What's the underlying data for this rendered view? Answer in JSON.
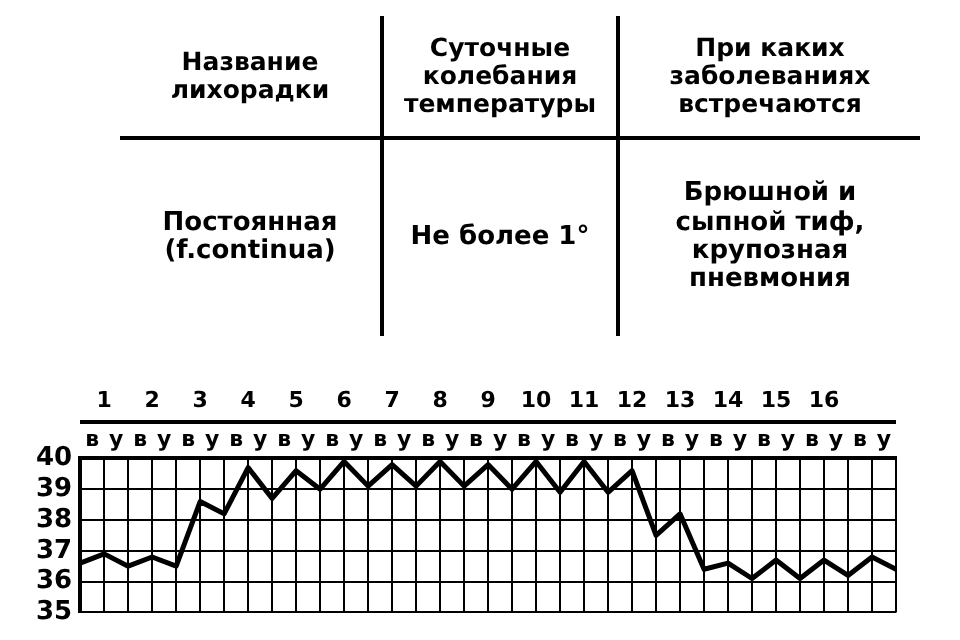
{
  "chart_data": [
    {
      "type": "other",
      "annotations": [
        "Название лихорадки",
        "Суточные колебания температуры",
        "При каких заболеваниях встречаются",
        "Постоянная (f.continua)",
        "Не более 1°",
        "Брюшной и сыпной тиф, крупозная пневмония"
      ]
    },
    {
      "type": "line",
      "annotations": [
        "в",
        "у",
        "в",
        "у",
        "в",
        "у",
        "в",
        "у",
        "в",
        "у",
        "в",
        "у",
        "в",
        "у",
        "в",
        "у",
        "в",
        "у",
        "в",
        "у",
        "в",
        "у",
        "в",
        "у",
        "в",
        "у",
        "в",
        "у",
        "в",
        "у",
        "в",
        "у",
        "в",
        "у"
      ],
      "x": [
        0.5,
        1,
        1.5,
        2,
        2.5,
        3,
        3.5,
        4,
        4.5,
        5,
        5.5,
        6,
        6.5,
        7,
        7.5,
        8,
        8.5,
        9,
        9.5,
        10,
        10.5,
        11,
        11.5,
        12,
        12.5,
        13,
        13.5,
        14,
        14.5,
        15,
        15.5,
        16,
        16.5,
        17,
        17.5
      ],
      "series": [
        {
          "color": "#000000",
          "values": [
            36.6,
            36.9,
            36.5,
            36.8,
            36.5,
            38.6,
            38.2,
            39.7,
            38.7,
            39.6,
            39.0,
            39.9,
            39.1,
            39.8,
            39.1,
            39.9,
            39.1,
            39.8,
            39.0,
            39.9,
            38.9,
            39.9,
            38.9,
            39.6,
            37.5,
            38.2,
            36.4,
            36.6,
            36.1,
            36.7,
            36.1,
            36.7,
            36.2,
            36.8,
            36.4
          ]
        }
      ],
      "xlim": [
        0.5,
        17.5
      ],
      "xticks": [
        {
          "value": 0.5,
          "label": null
        },
        1,
        {
          "value": 1,
          "label": null
        },
        {
          "value": 1.5,
          "label": null
        },
        2,
        {
          "value": 2,
          "label": null
        },
        {
          "value": 2.5,
          "label": null
        },
        3,
        {
          "value": 3,
          "label": null
        },
        {
          "value": 3.5,
          "label": null
        },
        4,
        {
          "value": 4,
          "label": null
        },
        {
          "value": 4.5,
          "label": null
        },
        5,
        {
          "value": 5,
          "label": null
        },
        {
          "value": 5.5,
          "label": null
        },
        6,
        {
          "value": 6,
          "label": null
        },
        {
          "value": 6.5,
          "label": null
        },
        7,
        {
          "value": 7,
          "label": null
        },
        {
          "value": 7.5,
          "label": null
        },
        8,
        {
          "value": 8,
          "label": null
        },
        {
          "value": 8.5,
          "label": null
        },
        9,
        {
          "value": 9,
          "label": null
        },
        {
          "value": 9.5,
          "label": null
        },
        10,
        {
          "value": 10,
          "label": null
        },
        {
          "value": 10.5,
          "label": null
        },
        11,
        {
          "value": 11,
          "label": null
        },
        {
          "value": 11.5,
          "label": null
        },
        12,
        {
          "value": 12,
          "label": null
        },
        {
          "value": 12.5,
          "label": null
        },
        13,
        {
          "value": 13,
          "label": null
        },
        {
          "value": 13.5,
          "label": null
        },
        14,
        {
          "value": 14,
          "label": null
        },
        {
          "value": 14.5,
          "label": null
        },
        15,
        {
          "value": 15,
          "label": null
        },
        {
          "value": 15.5,
          "label": null
        },
        16,
        {
          "value": 16,
          "label": null
        },
        {
          "value": 16.5,
          "label": null
        },
        {
          "value": 17,
          "label": null
        },
        {
          "value": 17.5,
          "label": null
        }
      ],
      "ylim": [
        35,
        40
      ],
      "yticks": [
        35,
        36,
        37,
        38,
        39,
        40
      ],
      "grid": true,
      "marker": "none",
      "line_style": "solid"
    }
  ]
}
